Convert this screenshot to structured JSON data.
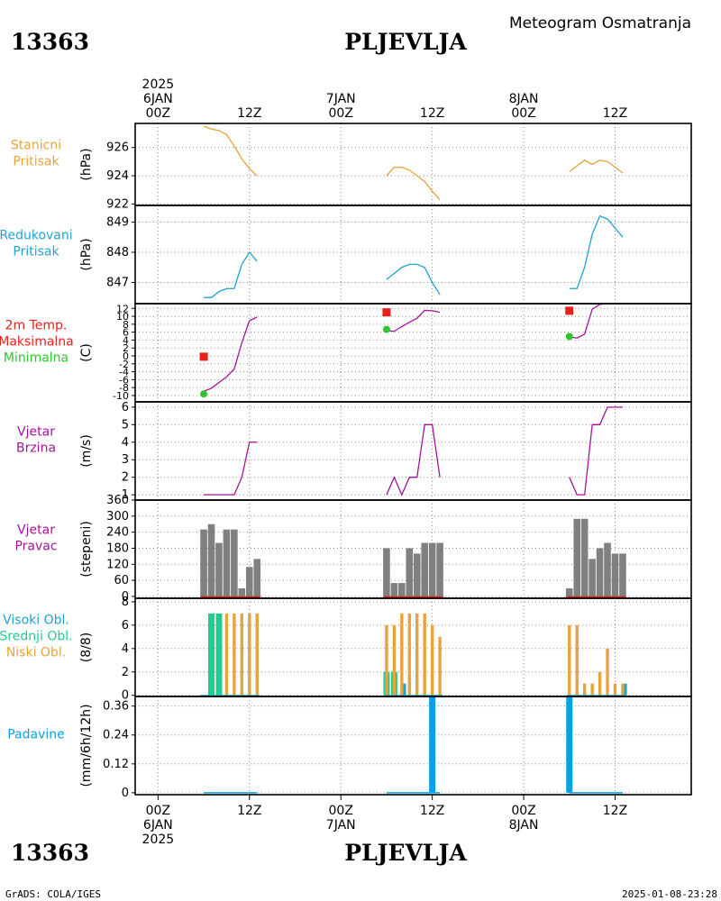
{
  "header": {
    "station_id": "13363",
    "station_name": "PLJEVLJA",
    "product": "Meteogram Osmatranja"
  },
  "footer": {
    "software": "GrADS: COLA/IGES",
    "timestamp": "2025-01-08-23:28"
  },
  "time_axis": {
    "top_labels": [
      {
        "lines": [
          "2025",
          "6JAN",
          "00Z"
        ]
      },
      {
        "lines": [
          "12Z"
        ]
      },
      {
        "lines": [
          "7JAN",
          "00Z"
        ]
      },
      {
        "lines": [
          "12Z"
        ]
      },
      {
        "lines": [
          "8JAN",
          "00Z"
        ]
      },
      {
        "lines": [
          "12Z"
        ]
      }
    ],
    "bottom_labels": [
      {
        "lines": [
          "00Z",
          "6JAN",
          "2025"
        ]
      },
      {
        "lines": [
          "12Z"
        ]
      },
      {
        "lines": [
          "00Z",
          "7JAN"
        ]
      },
      {
        "lines": [
          "12Z"
        ]
      },
      {
        "lines": [
          "00Z",
          "8JAN"
        ]
      },
      {
        "lines": [
          "12Z"
        ]
      }
    ],
    "ticks_hours": [
      0,
      12,
      24,
      36,
      48,
      60
    ],
    "range_hours": [
      -3,
      70
    ]
  },
  "colors": {
    "station_pressure": "#e8a33c",
    "reduced_pressure": "#1fa3d0",
    "tmax": "#e6201b",
    "tmin": "#2bc82b",
    "temp_line": "#a3139a",
    "wind": "#a3139a",
    "wind_dir_bar": "#808080",
    "wind_dir_base": "#e6201b",
    "cloud_high": "#1fa3d0",
    "cloud_mid": "#22cc8c",
    "cloud_low": "#e8a33c",
    "precip": "#0aa0e6"
  },
  "chart_data": [
    {
      "type": "line",
      "panel": "station_pressure",
      "label_lines": [
        "Stanicni",
        "Pritisak"
      ],
      "ylabel": "(hPa)",
      "yticks": [
        "926",
        "924",
        "922"
      ],
      "ylim": [
        921.9,
        927.7
      ],
      "series": [
        {
          "x": [
            6,
            7,
            8,
            9,
            10,
            11,
            12,
            13
          ],
          "y": [
            927.5,
            927.3,
            927.2,
            926.9,
            926.1,
            925.2,
            924.5,
            924.0
          ]
        },
        {
          "x": [
            30,
            31,
            32,
            33,
            34,
            35,
            36,
            37
          ],
          "y": [
            924.0,
            924.6,
            924.6,
            924.4,
            924.0,
            923.6,
            922.9,
            922.3
          ]
        },
        {
          "x": [
            54,
            55,
            56,
            57,
            58,
            59,
            60,
            61
          ],
          "y": [
            924.3,
            924.7,
            925.1,
            924.8,
            925.1,
            925.0,
            924.6,
            924.2
          ]
        }
      ]
    },
    {
      "type": "line",
      "panel": "reduced_pressure",
      "label_lines": [
        "Redukovani",
        "Pritisak"
      ],
      "ylabel": "(hPa)",
      "yticks": [
        "849",
        "848",
        "847"
      ],
      "ylim": [
        846.3,
        849.55
      ],
      "series": [
        {
          "x": [
            6,
            7,
            8,
            9,
            10,
            11,
            12,
            13
          ],
          "y": [
            846.5,
            846.5,
            846.7,
            846.8,
            846.8,
            847.6,
            848.0,
            847.7
          ]
        },
        {
          "x": [
            30,
            31,
            32,
            33,
            34,
            35,
            36,
            37
          ],
          "y": [
            847.1,
            847.3,
            847.5,
            847.6,
            847.6,
            847.5,
            847.0,
            846.6
          ]
        },
        {
          "x": [
            54,
            55,
            56,
            57,
            58,
            59,
            60,
            61
          ],
          "y": [
            846.8,
            846.8,
            847.5,
            848.6,
            849.2,
            849.1,
            848.8,
            848.5
          ]
        }
      ]
    },
    {
      "type": "line",
      "panel": "temperature",
      "label_lines": [
        "2m Temp.",
        "Maksimalna",
        "Minimalna"
      ],
      "ylabel": "(C)",
      "yticks": [
        "12",
        "10",
        "8",
        "6",
        "4",
        "2",
        "0",
        "-2",
        "-4",
        "-6",
        "-8",
        "-10"
      ],
      "ylim": [
        -11.6,
        13.2
      ],
      "series": [
        {
          "x": [
            6,
            7,
            8,
            9,
            10,
            11,
            12,
            13
          ],
          "y": [
            -8.9,
            -8.2,
            -6.7,
            -5.3,
            -3.3,
            3.3,
            8.9,
            9.8
          ]
        },
        {
          "x": [
            30,
            31,
            32,
            33,
            34,
            35,
            36,
            37
          ],
          "y": [
            6.4,
            6.2,
            7.4,
            8.5,
            9.5,
            11.5,
            11.4,
            11.0
          ]
        },
        {
          "x": [
            54,
            55,
            56,
            57,
            58,
            59,
            60,
            61
          ],
          "y": [
            4.8,
            4.5,
            5.5,
            11.8,
            13.0,
            13.2,
            13.2,
            13.2
          ]
        }
      ],
      "tmax": [
        {
          "x": 6,
          "y": -0.2
        },
        {
          "x": 30,
          "y": 11.0
        },
        {
          "x": 54,
          "y": 11.4
        }
      ],
      "tmin": [
        {
          "x": 6,
          "y": -9.6
        },
        {
          "x": 30,
          "y": 6.7
        },
        {
          "x": 54,
          "y": 4.9
        }
      ]
    },
    {
      "type": "line",
      "panel": "wind_speed",
      "label_lines": [
        "Vjetar",
        "Brzina"
      ],
      "ylabel": "(m/s)",
      "yticks": [
        "6",
        "5",
        "4",
        "3",
        "2",
        "1"
      ],
      "ylim": [
        0.7,
        6.3
      ],
      "series": [
        {
          "x": [
            6,
            7,
            8,
            9,
            10,
            11,
            12,
            13
          ],
          "y": [
            1,
            1,
            1,
            1,
            1,
            2,
            4,
            4
          ]
        },
        {
          "x": [
            30,
            31,
            32,
            33,
            34,
            35,
            36,
            37
          ],
          "y": [
            1,
            2,
            1,
            2,
            2,
            5,
            5,
            2
          ]
        },
        {
          "x": [
            54,
            55,
            56,
            57,
            58,
            59,
            60,
            61
          ],
          "y": [
            2,
            1,
            1,
            5,
            5,
            6,
            6,
            6
          ]
        }
      ]
    },
    {
      "type": "bar",
      "panel": "wind_direction",
      "label_lines": [
        "Vjetar",
        "Pravac"
      ],
      "ylabel": "(stepeni)",
      "yticks": [
        "360",
        "300",
        "240",
        "180",
        "120",
        "60",
        "0"
      ],
      "ylim": [
        -7,
        360
      ],
      "x": [
        6,
        7,
        8,
        9,
        10,
        11,
        12,
        13,
        30,
        31,
        32,
        33,
        34,
        35,
        36,
        37,
        54,
        55,
        56,
        57,
        58,
        59,
        60,
        61
      ],
      "values": [
        250,
        270,
        200,
        250,
        250,
        30,
        110,
        140,
        180,
        50,
        50,
        180,
        160,
        200,
        200,
        200,
        30,
        290,
        290,
        140,
        180,
        200,
        160,
        160
      ]
    },
    {
      "type": "bar",
      "panel": "clouds",
      "label_lines": [
        "Visoki Obl.",
        "Srednji Obl.",
        "Niski Obl."
      ],
      "ylabel": "(8/8)",
      "yticks": [
        "8",
        "6",
        "4",
        "2",
        "0"
      ],
      "ylim": [
        -0.1,
        8.3
      ],
      "x": [
        6,
        7,
        8,
        9,
        10,
        11,
        12,
        13,
        30,
        31,
        32,
        33,
        34,
        35,
        36,
        37,
        54,
        55,
        56,
        57,
        58,
        59,
        60,
        61
      ],
      "series": [
        {
          "name": "Visoki Obl.",
          "values": [
            0,
            0,
            0,
            0,
            0,
            0,
            0,
            0,
            0,
            0,
            1,
            0,
            0,
            0,
            0,
            0,
            0,
            0,
            0,
            0,
            0,
            0,
            0,
            1
          ]
        },
        {
          "name": "Srednji Obl.",
          "values": [
            0,
            7,
            7,
            0,
            0,
            0,
            0,
            0,
            2,
            2,
            0,
            0,
            0,
            0,
            0,
            0,
            0,
            0,
            0,
            0,
            0,
            0,
            0,
            0
          ]
        },
        {
          "name": "Niski Obl.",
          "values": [
            0,
            0,
            0,
            7,
            7,
            7,
            7,
            7,
            6,
            6,
            7,
            7,
            7,
            7,
            6,
            5,
            6,
            6,
            1,
            1,
            2,
            4,
            1,
            1
          ]
        }
      ]
    },
    {
      "type": "bar",
      "panel": "precipitation",
      "label_lines": [
        "Padavine"
      ],
      "ylabel": "(mm/6h/12h)",
      "yticks": [
        "0.36",
        "0.24",
        "0.12",
        "0"
      ],
      "ylim": [
        -0.008,
        0.4
      ],
      "bars": [
        {
          "x": 36,
          "y": 0.4
        },
        {
          "x": 54,
          "y": 0.4
        }
      ],
      "baseline_segments": [
        [
          6,
          13
        ],
        [
          30,
          37
        ],
        [
          54,
          61
        ]
      ]
    }
  ]
}
